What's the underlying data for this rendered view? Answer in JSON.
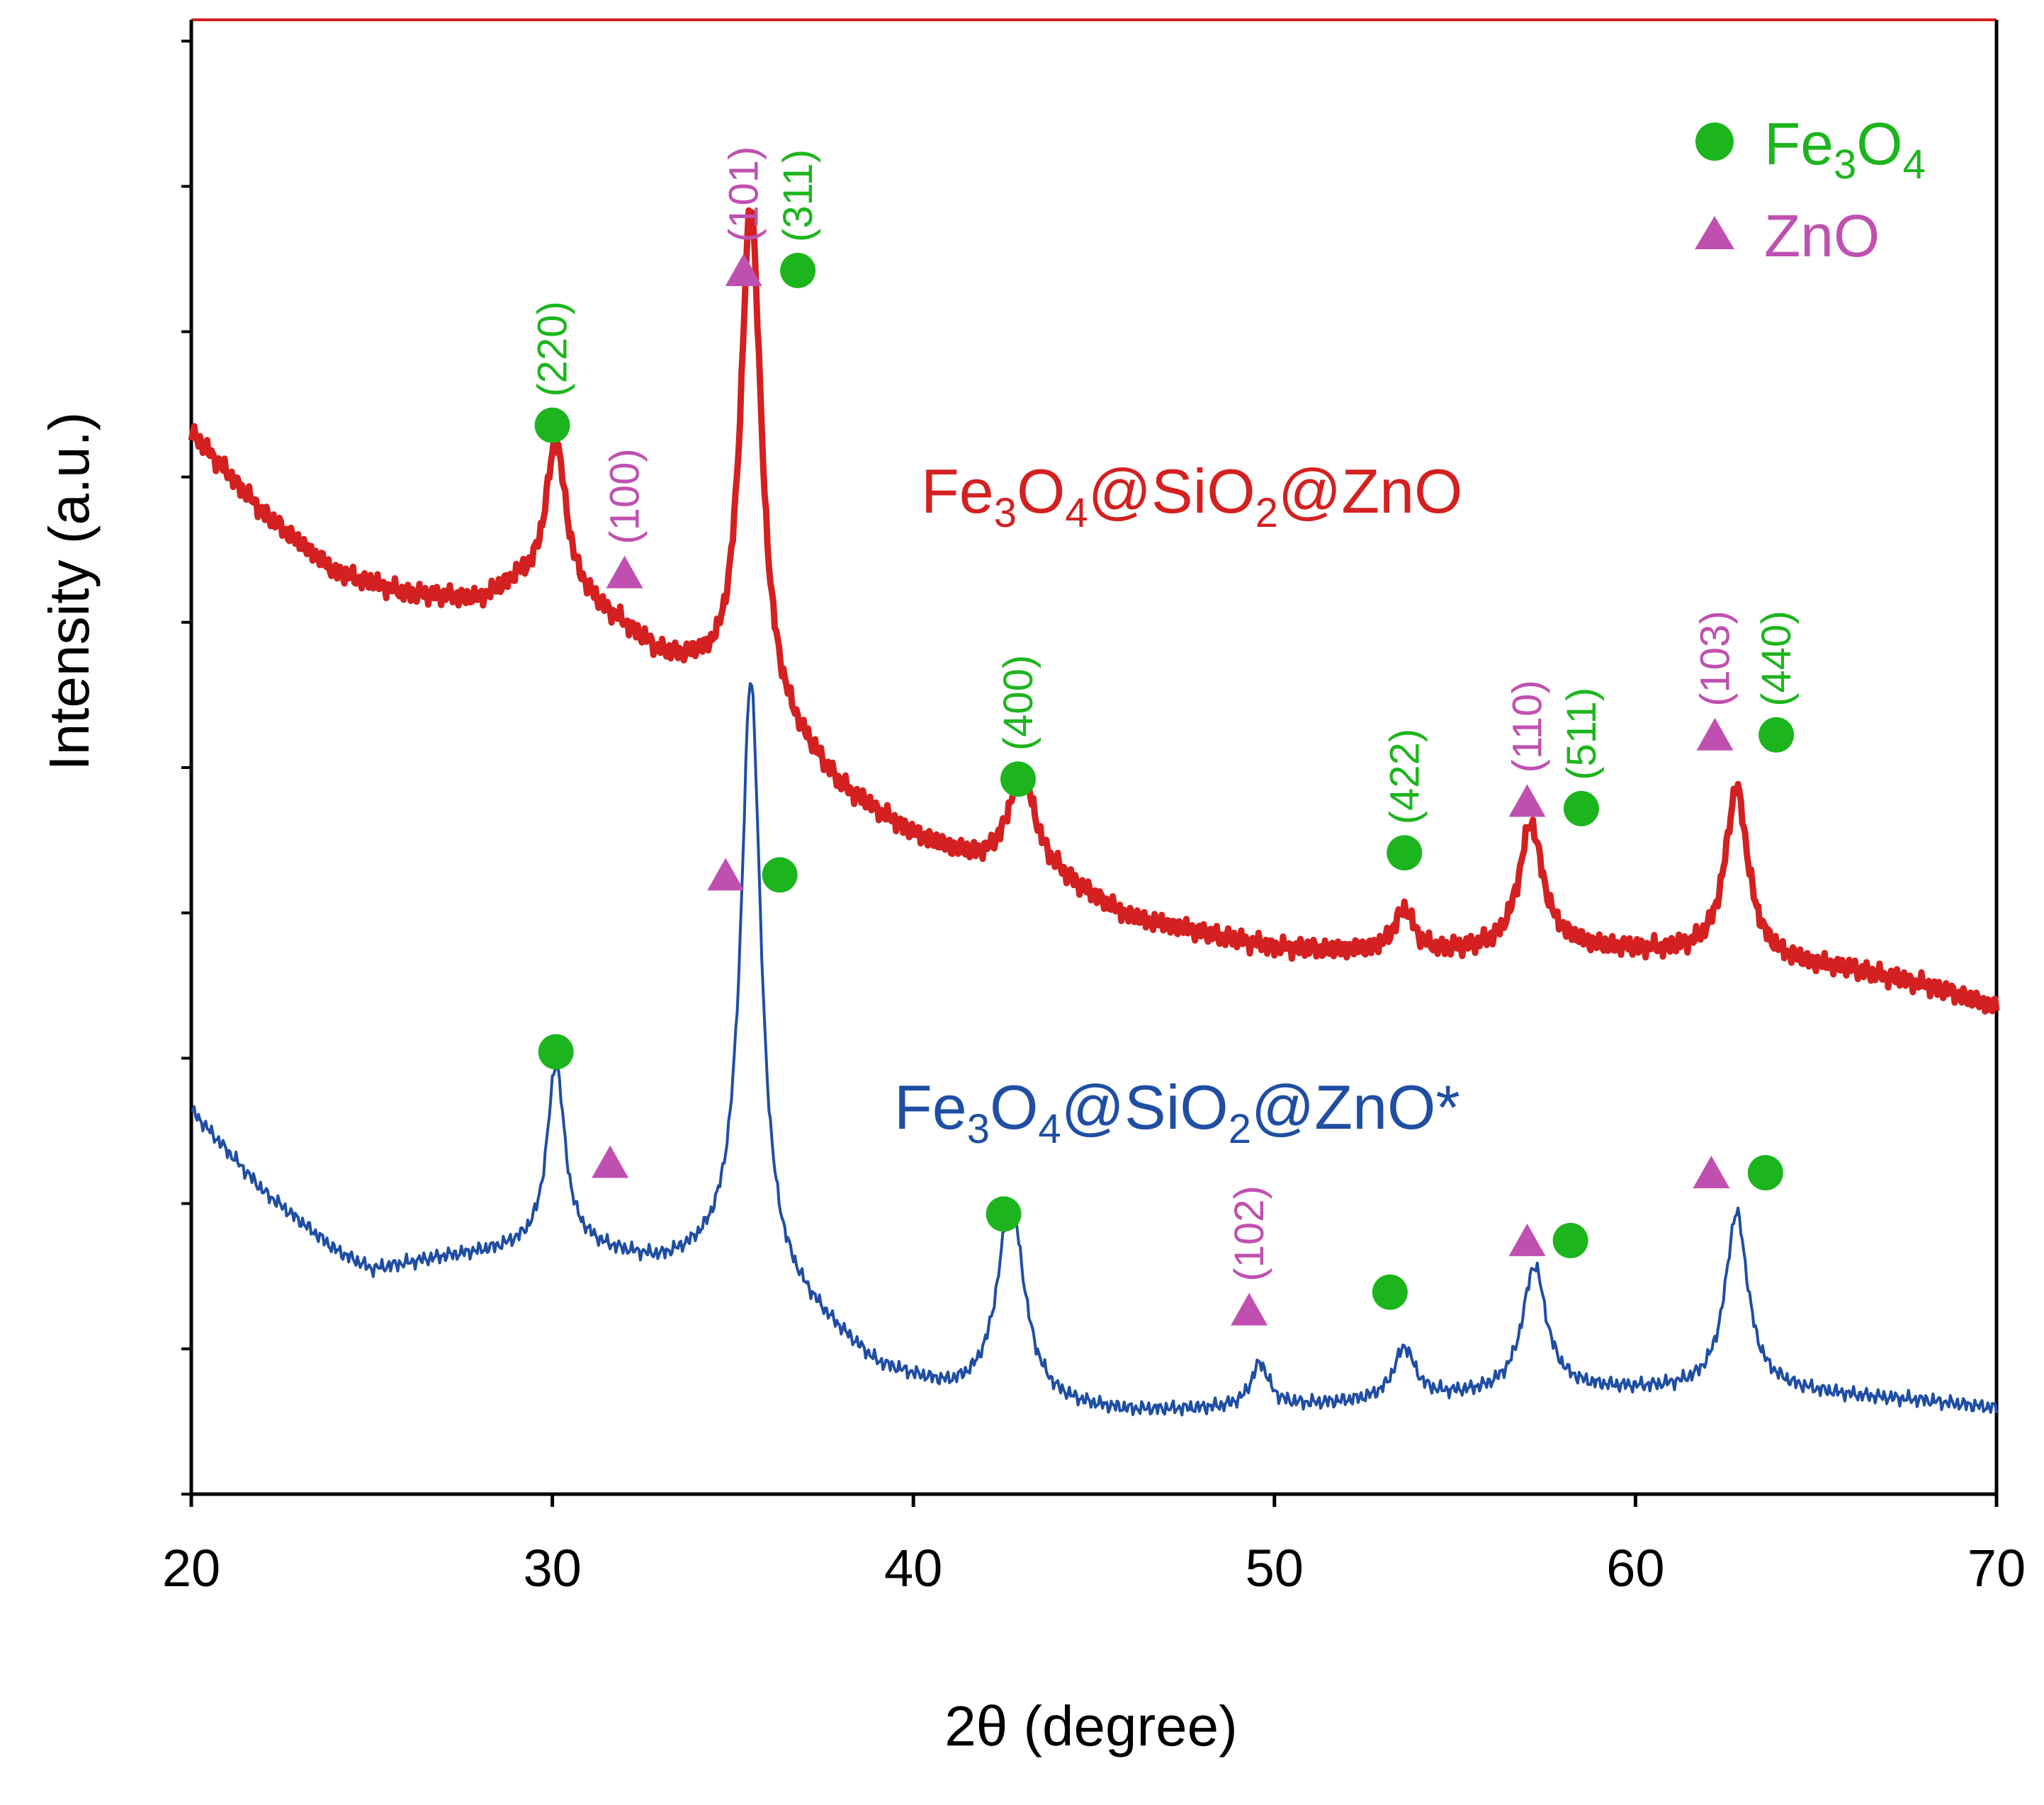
{
  "chart_data": {
    "type": "line",
    "title": "",
    "xlabel": "2θ (degree)",
    "ylabel": "Intensity (a.u.)",
    "xlim": [
      20,
      70
    ],
    "ylim": [
      0,
      1
    ],
    "x_ticks": [
      20,
      30,
      40,
      50,
      60,
      70
    ],
    "x_tick_labels": [
      "20",
      "30",
      "40",
      "50",
      "60",
      "70"
    ],
    "y_tick_count": 11,
    "grid": false,
    "legend_position": "top-right",
    "legend": [
      {
        "marker": "circle",
        "name": "Fe3O4",
        "base": "Fe",
        "sub1": "3",
        "mid": "O",
        "sub2": "4",
        "color": "#1db51d"
      },
      {
        "marker": "triangle",
        "name": "ZnO",
        "color": "#c050b0"
      }
    ],
    "series": [
      {
        "name": "Fe3O4@SiO2@ZnO",
        "label_parts": {
          "a": "Fe",
          "s1": "3",
          "b": "O",
          "s2": "4",
          "c": "@SiO",
          "s3": "2",
          "d": "@ZnO"
        },
        "color": "#d42020",
        "baseline": [
          [
            20,
            0.72
          ],
          [
            22,
            0.665
          ],
          [
            24,
            0.625
          ],
          [
            26,
            0.61
          ],
          [
            28,
            0.605
          ],
          [
            29,
            0.615
          ],
          [
            31,
            0.6
          ],
          [
            32,
            0.585
          ],
          [
            33,
            0.565
          ],
          [
            34,
            0.555
          ],
          [
            37,
            0.5
          ],
          [
            38,
            0.475
          ],
          [
            40,
            0.445
          ],
          [
            42,
            0.425
          ],
          [
            44,
            0.415
          ],
          [
            46,
            0.39
          ],
          [
            50,
            0.37
          ],
          [
            54,
            0.365
          ],
          [
            58,
            0.37
          ],
          [
            62,
            0.365
          ],
          [
            64,
            0.36
          ],
          [
            66,
            0.355
          ],
          [
            68,
            0.345
          ],
          [
            70,
            0.33
          ]
        ],
        "peaks": [
          {
            "x": 30.1,
            "height": 0.105,
            "width": 0.35
          },
          {
            "x": 35.5,
            "height": 0.345,
            "width": 0.35
          },
          {
            "x": 43.0,
            "height": 0.07,
            "width": 0.45
          },
          {
            "x": 53.6,
            "height": 0.03,
            "width": 0.35
          },
          {
            "x": 57.1,
            "height": 0.085,
            "width": 0.4
          },
          {
            "x": 62.8,
            "height": 0.115,
            "width": 0.38
          }
        ]
      },
      {
        "name": "Fe3O4@SiO2@ZnO*",
        "label_parts": {
          "a": "Fe",
          "s1": "3",
          "b": "O",
          "s2": "4",
          "c": "@SiO",
          "s3": "2",
          "d": "@ZnO*"
        },
        "color": "#1f4ea3",
        "baseline": [
          [
            20,
            0.26
          ],
          [
            22,
            0.205
          ],
          [
            24,
            0.165
          ],
          [
            25,
            0.152
          ],
          [
            27,
            0.16
          ],
          [
            29,
            0.165
          ],
          [
            31,
            0.165
          ],
          [
            33,
            0.155
          ],
          [
            35,
            0.16
          ],
          [
            37,
            0.125
          ],
          [
            39,
            0.085
          ],
          [
            41,
            0.068
          ],
          [
            44,
            0.058
          ],
          [
            46,
            0.055
          ],
          [
            50,
            0.058
          ],
          [
            54,
            0.064
          ],
          [
            58,
            0.07
          ],
          [
            62,
            0.07
          ],
          [
            64,
            0.07
          ],
          [
            66,
            0.066
          ],
          [
            68,
            0.063
          ],
          [
            70,
            0.058
          ]
        ],
        "peaks": [
          {
            "x": 30.1,
            "height": 0.125,
            "width": 0.3
          },
          {
            "x": 35.5,
            "height": 0.4,
            "width": 0.33
          },
          {
            "x": 42.7,
            "height": 0.135,
            "width": 0.45
          },
          {
            "x": 49.6,
            "height": 0.03,
            "width": 0.3
          },
          {
            "x": 53.6,
            "height": 0.035,
            "width": 0.35
          },
          {
            "x": 57.2,
            "height": 0.085,
            "width": 0.4
          },
          {
            "x": 62.8,
            "height": 0.12,
            "width": 0.38
          }
        ]
      }
    ],
    "annotations": [
      {
        "series": 0,
        "marker": "circle",
        "phase": "Fe3O4",
        "hkl": "(220)",
        "x": 30.0,
        "y": 0.725
      },
      {
        "series": 0,
        "marker": "triangle",
        "phase": "ZnO",
        "hkl": "(100)",
        "x": 32.0,
        "y": 0.625
      },
      {
        "series": 0,
        "marker": "triangle",
        "phase": "ZnO",
        "hkl": "(101)",
        "x": 35.3,
        "y": 0.83
      },
      {
        "series": 0,
        "marker": "circle",
        "phase": "Fe3O4",
        "hkl": "(311)",
        "x": 36.8,
        "y": 0.83
      },
      {
        "series": 0,
        "marker": "circle",
        "phase": "Fe3O4",
        "hkl": "(400)",
        "x": 42.9,
        "y": 0.485
      },
      {
        "series": 0,
        "marker": "circle",
        "phase": "Fe3O4",
        "hkl": "(422)",
        "x": 53.6,
        "y": 0.435
      },
      {
        "series": 0,
        "marker": "triangle",
        "phase": "ZnO",
        "hkl": "(110)",
        "x": 57.0,
        "y": 0.47
      },
      {
        "series": 0,
        "marker": "circle",
        "phase": "Fe3O4",
        "hkl": "(511)",
        "x": 58.5,
        "y": 0.465
      },
      {
        "series": 0,
        "marker": "triangle",
        "phase": "ZnO",
        "hkl": "(103)",
        "x": 62.2,
        "y": 0.515
      },
      {
        "series": 0,
        "marker": "circle",
        "phase": "Fe3O4",
        "hkl": "(440)",
        "x": 63.9,
        "y": 0.515
      },
      {
        "series": 1,
        "marker": "triangle",
        "phase": "ZnO",
        "hkl": "",
        "x": 34.8,
        "y": 0.42
      },
      {
        "series": 1,
        "marker": "circle",
        "phase": "Fe3O4",
        "hkl": "",
        "x": 36.3,
        "y": 0.42
      },
      {
        "series": 1,
        "marker": "circle",
        "phase": "Fe3O4",
        "hkl": "",
        "x": 30.1,
        "y": 0.3
      },
      {
        "series": 1,
        "marker": "triangle",
        "phase": "ZnO",
        "hkl": "",
        "x": 31.6,
        "y": 0.225
      },
      {
        "series": 1,
        "marker": "circle",
        "phase": "Fe3O4",
        "hkl": "",
        "x": 42.5,
        "y": 0.19
      },
      {
        "series": 1,
        "marker": "triangle",
        "phase": "ZnO",
        "hkl": "(102)",
        "x": 49.3,
        "y": 0.125
      },
      {
        "series": 1,
        "marker": "circle",
        "phase": "Fe3O4",
        "hkl": "",
        "x": 53.2,
        "y": 0.137
      },
      {
        "series": 1,
        "marker": "triangle",
        "phase": "ZnO",
        "hkl": "",
        "x": 57.0,
        "y": 0.172
      },
      {
        "series": 1,
        "marker": "circle",
        "phase": "Fe3O4",
        "hkl": "",
        "x": 58.2,
        "y": 0.172
      },
      {
        "series": 1,
        "marker": "triangle",
        "phase": "ZnO",
        "hkl": "",
        "x": 62.1,
        "y": 0.218
      },
      {
        "series": 1,
        "marker": "circle",
        "phase": "Fe3O4",
        "hkl": "",
        "x": 63.6,
        "y": 0.218
      }
    ]
  }
}
